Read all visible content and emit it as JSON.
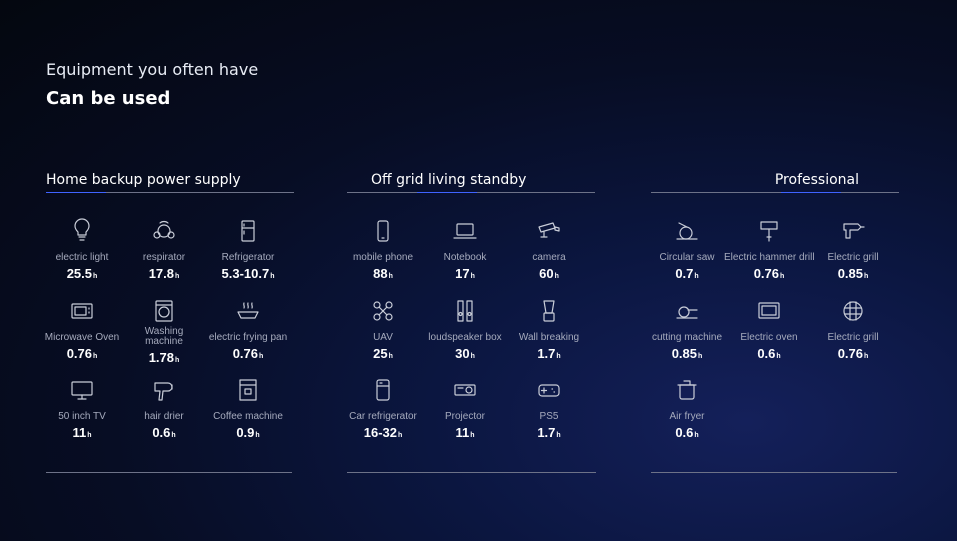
{
  "header": {
    "subtitle": "Equipment you often have",
    "title": "Can be used"
  },
  "unit": "h",
  "sections": [
    {
      "title": "Home backup power supply",
      "items": [
        {
          "label": "electric light",
          "value": "25.5",
          "icon": "bulb-icon"
        },
        {
          "label": "respirator",
          "value": "17.8",
          "icon": "respirator-icon"
        },
        {
          "label": "Refrigerator",
          "value": "5.3-10.7",
          "icon": "refrigerator-icon"
        },
        {
          "label": "Microwave Oven",
          "value": "0.76",
          "icon": "microwave-icon"
        },
        {
          "label": "Washing machine",
          "value": "1.78",
          "icon": "washing-machine-icon"
        },
        {
          "label": "electric frying pan",
          "value": "0.76",
          "icon": "frying-pan-icon"
        },
        {
          "label": "50 inch TV",
          "value": "11",
          "icon": "tv-icon"
        },
        {
          "label": "hair drier",
          "value": "0.6",
          "icon": "hair-dryer-icon"
        },
        {
          "label": "Coffee machine",
          "value": "0.9",
          "icon": "coffee-machine-icon"
        }
      ]
    },
    {
      "title": "Off grid living standby",
      "items": [
        {
          "label": "mobile phone",
          "value": "88",
          "icon": "phone-icon"
        },
        {
          "label": "Notebook",
          "value": "17",
          "icon": "laptop-icon"
        },
        {
          "label": "camera",
          "value": "60",
          "icon": "camera-icon"
        },
        {
          "label": "UAV",
          "value": "25",
          "icon": "drone-icon"
        },
        {
          "label": "loudspeaker box",
          "value": "30",
          "icon": "speaker-icon"
        },
        {
          "label": "Wall breaking",
          "value": "1.7",
          "icon": "blender-icon"
        },
        {
          "label": "Car refrigerator",
          "value": "16-32",
          "icon": "car-fridge-icon"
        },
        {
          "label": "Projector",
          "value": "11",
          "icon": "projector-icon"
        },
        {
          "label": "PS5",
          "value": "1.7",
          "icon": "gamepad-icon"
        }
      ]
    },
    {
      "title": "Professional",
      "items": [
        {
          "label": "Circular saw",
          "value": "0.7",
          "icon": "circular-saw-icon"
        },
        {
          "label": "Electric hammer drill",
          "value": "0.76",
          "icon": "hammer-drill-icon"
        },
        {
          "label": "Electric grill",
          "value": "0.85",
          "icon": "drill-icon"
        },
        {
          "label": "cutting machine",
          "value": "0.85",
          "icon": "cutting-machine-icon"
        },
        {
          "label": "Electric oven",
          "value": "0.6",
          "icon": "oven-icon"
        },
        {
          "label": "Electric grill",
          "value": "0.76",
          "icon": "grill-icon"
        },
        {
          "label": "Air fryer",
          "value": "0.6",
          "icon": "air-fryer-icon"
        }
      ]
    }
  ],
  "colors": {
    "accent": "#3f63ff",
    "label": "#a6abbd",
    "line": "#6d7288"
  }
}
